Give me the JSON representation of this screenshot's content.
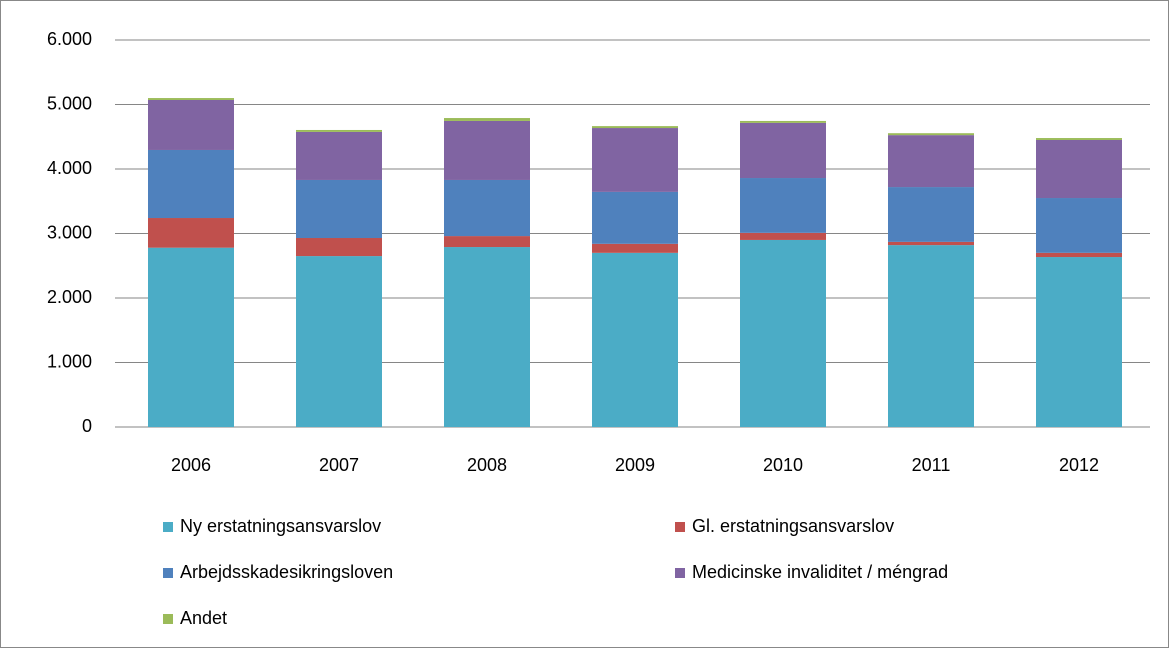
{
  "chart_data": {
    "type": "stacked_bar",
    "categories": [
      "2006",
      "2007",
      "2008",
      "2009",
      "2010",
      "2011",
      "2012"
    ],
    "series": [
      {
        "name": "Ny erstatningsansvarslov",
        "color": "#4bacc6",
        "values": [
          2780,
          2650,
          2790,
          2700,
          2900,
          2820,
          2635
        ]
      },
      {
        "name": "Gl. erstatningsansvarslov",
        "color": "#c0504d",
        "values": [
          460,
          280,
          170,
          140,
          110,
          50,
          65
        ]
      },
      {
        "name": "Arbejdsskadesikringsloven",
        "color": "#4f81bd",
        "values": [
          1055,
          900,
          870,
          805,
          850,
          850,
          850
        ]
      },
      {
        "name": "Medicinske invaliditet / méngrad",
        "color": "#8064a2",
        "values": [
          775,
          745,
          915,
          990,
          855,
          805,
          900
        ]
      },
      {
        "name": "Andet",
        "color": "#9bbb59",
        "values": [
          30,
          30,
          45,
          30,
          30,
          30,
          30
        ]
      }
    ],
    "ylim": [
      0,
      6000
    ],
    "yticks": [
      0,
      {
        "value": 1000,
        "label": "1.000"
      },
      {
        "value": 2000,
        "label": "2.000"
      },
      {
        "value": 3000,
        "label": "3.000"
      },
      {
        "value": 4000,
        "label": "4.000"
      },
      {
        "value": 5000,
        "label": "5.000"
      },
      {
        "value": 6000,
        "label": "6.000"
      }
    ],
    "grid": true,
    "legend": "bottom"
  }
}
